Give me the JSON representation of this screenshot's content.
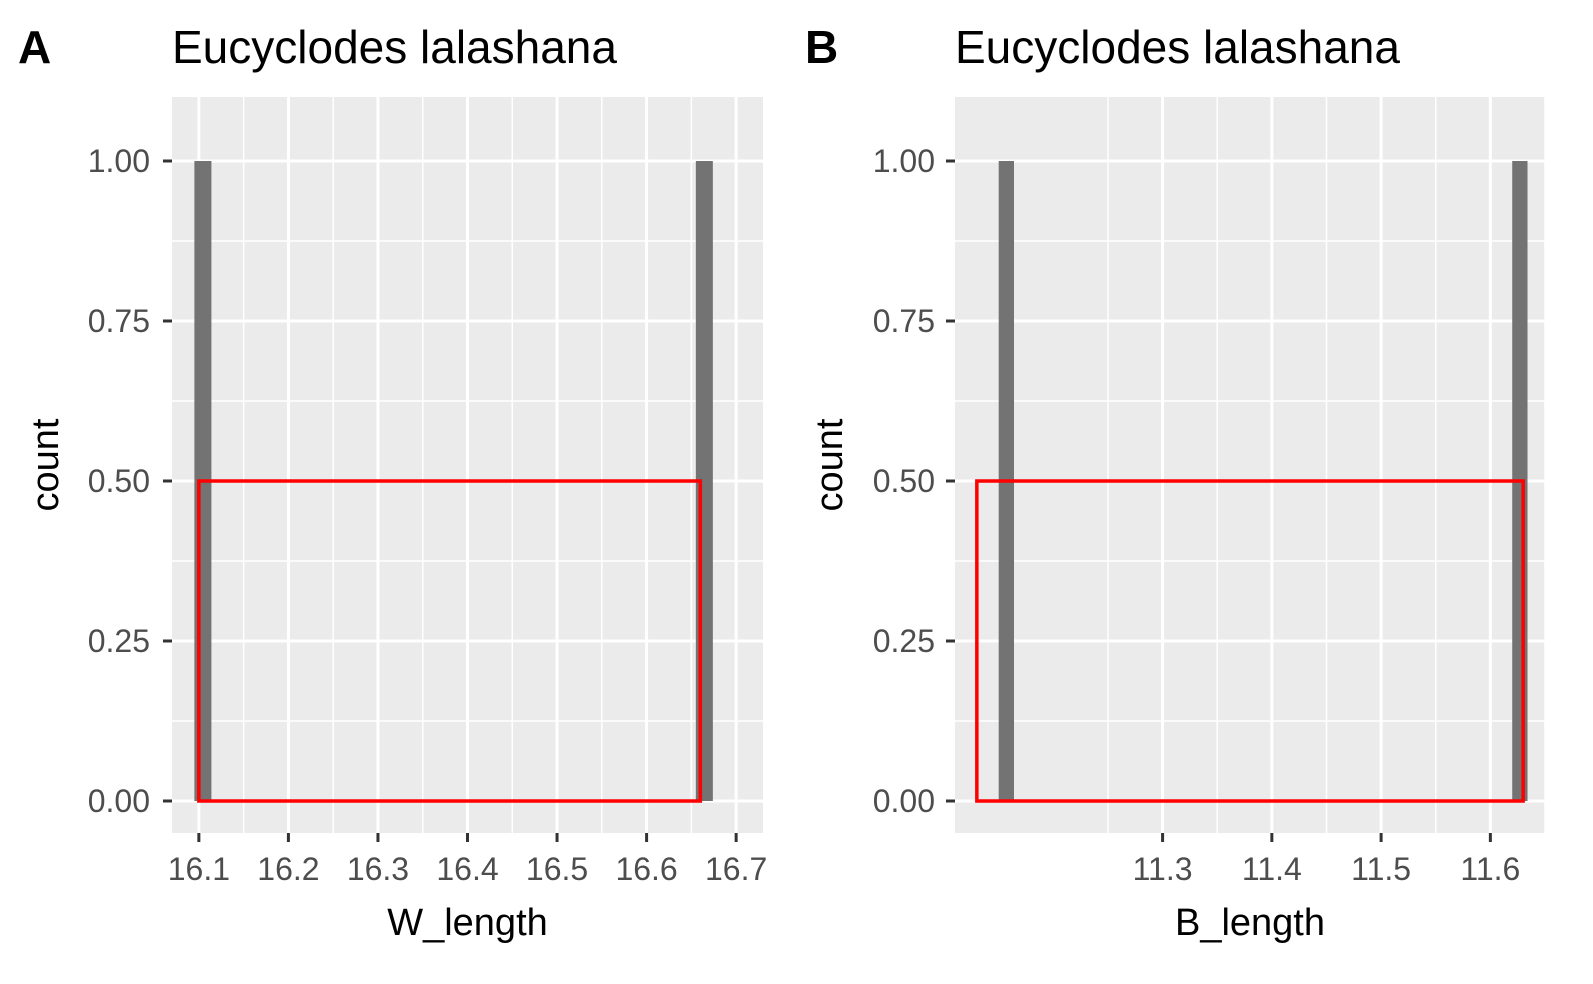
{
  "colors": {
    "panel_background": "#ebebeb",
    "gridline": "#ffffff",
    "bar_fill": "#737373",
    "overlay_stroke": "#ff0000",
    "tick_text": "#4d4d4d"
  },
  "chart_data": [
    {
      "type": "bar",
      "panel_tag": "A",
      "title": "Eucyclodes lalashana",
      "xlabel": "W_length",
      "ylabel": "count",
      "xlim": [
        16.07,
        16.73
      ],
      "ylim": [
        -0.05,
        1.1
      ],
      "x_ticks": [
        16.1,
        16.2,
        16.3,
        16.4,
        16.5,
        16.6,
        16.7
      ],
      "x_tick_labels": [
        "16.1",
        "16.2",
        "16.3",
        "16.4",
        "16.5",
        "16.6",
        "16.7"
      ],
      "y_ticks": [
        0,
        0.25,
        0.5,
        0.75,
        1
      ],
      "y_tick_labels": [
        "0.00",
        "0.25",
        "0.50",
        "0.75",
        "1.00"
      ],
      "grid": true,
      "bars": [
        {
          "x_start": 16.095,
          "x_end": 16.114,
          "count": 1
        },
        {
          "x_start": 16.655,
          "x_end": 16.674,
          "count": 1
        }
      ],
      "overlay_rect": {
        "x_start": 16.1,
        "x_end": 16.66,
        "y_bottom": 0,
        "y_top": 0.5
      }
    },
    {
      "type": "bar",
      "panel_tag": "B",
      "title": "Eucyclodes lalashana",
      "xlabel": "B_length",
      "ylabel": "count",
      "xlim": [
        11.11,
        11.65
      ],
      "ylim": [
        -0.05,
        1.1
      ],
      "x_ticks": [
        11.3,
        11.4,
        11.5,
        11.6
      ],
      "x_tick_labels": [
        "11.3",
        "11.4",
        "11.5",
        "11.6"
      ],
      "y_ticks": [
        0,
        0.25,
        0.5,
        0.75,
        1
      ],
      "y_tick_labels": [
        "0.00",
        "0.25",
        "0.50",
        "0.75",
        "1.00"
      ],
      "grid": true,
      "bars": [
        {
          "x_start": 11.15,
          "x_end": 11.164,
          "count": 1
        },
        {
          "x_start": 11.62,
          "x_end": 11.634,
          "count": 1
        }
      ],
      "overlay_rect": {
        "x_start": 11.13,
        "x_end": 11.63,
        "y_bottom": 0,
        "y_top": 0.5
      }
    }
  ]
}
